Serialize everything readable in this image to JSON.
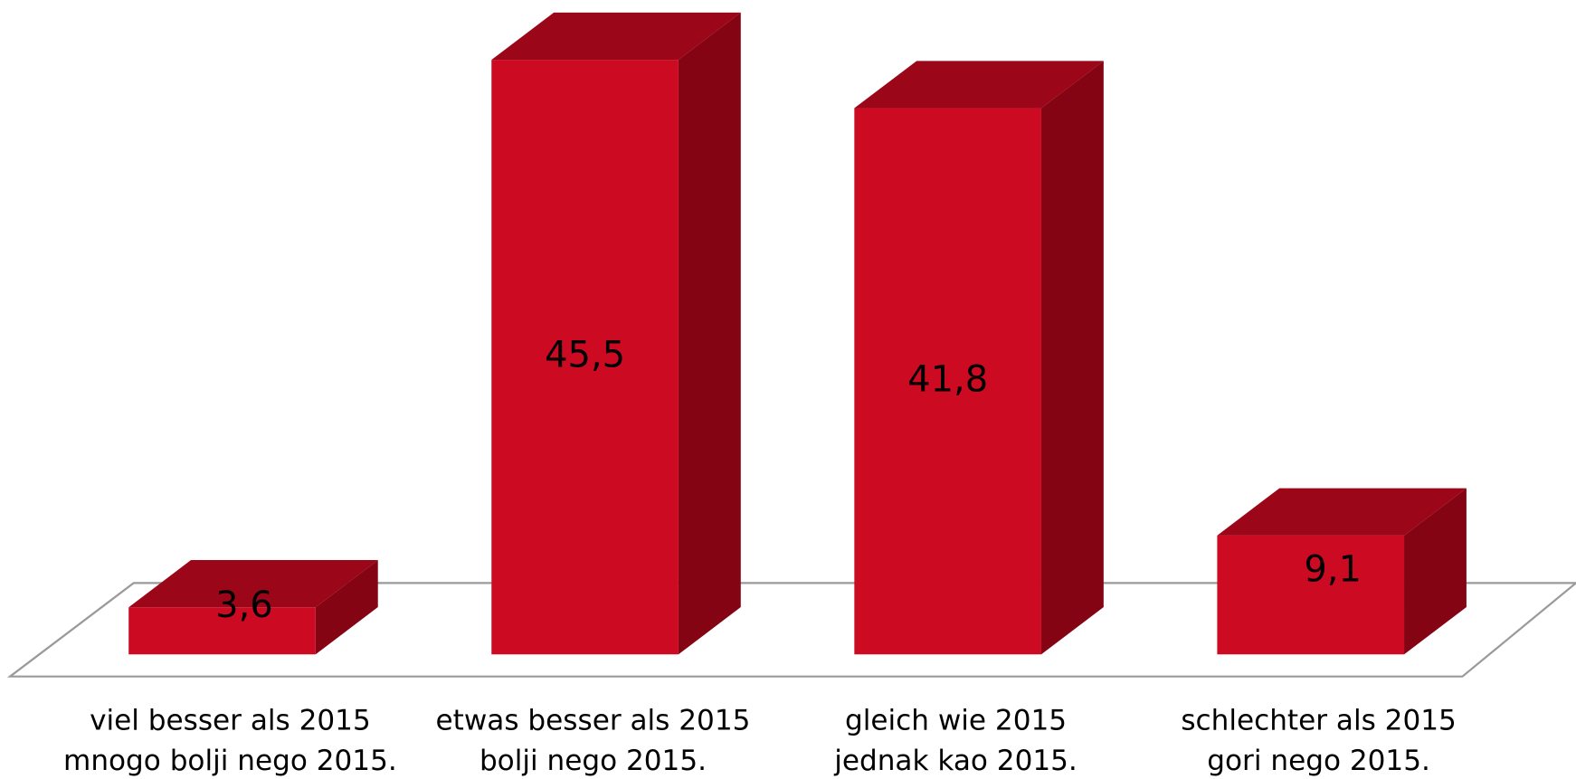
{
  "chart_data": {
    "type": "bar3d",
    "categories": [
      [
        "viel besser als 2015",
        "mnogo bolji nego 2015."
      ],
      [
        "etwas besser als 2015",
        "bolji nego 2015."
      ],
      [
        "gleich wie 2015",
        "jednak kao 2015."
      ],
      [
        "schlechter als 2015",
        "gori nego 2015."
      ]
    ],
    "values": [
      3.6,
      45.5,
      41.8,
      9.1
    ],
    "value_labels": [
      "3,6",
      "45,5",
      "41,8",
      "9,1"
    ],
    "colors": {
      "front": "#cc0a22",
      "top": "#9c0619",
      "side": "#850414"
    }
  }
}
